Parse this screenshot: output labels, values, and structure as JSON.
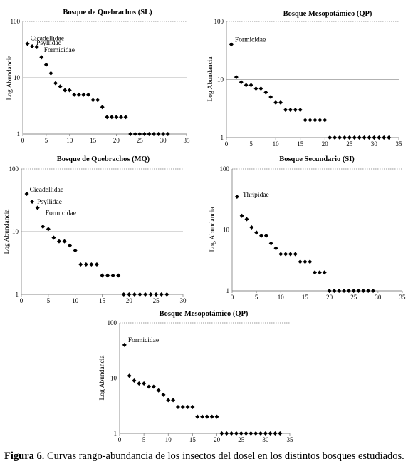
{
  "caption": {
    "label": "Figura 6.",
    "text": " Curvas rango-abundancia de los insectos del dosel en los distintos bosques estudiados."
  },
  "chart_data": [
    {
      "type": "scatter",
      "title": "Bosque de Quebrachos (SL)",
      "ylabel": "Log Abundancia",
      "yscale": "log",
      "ylim": [
        1,
        100
      ],
      "yticks": [
        "1",
        "10",
        "100"
      ],
      "xlim": [
        0,
        35
      ],
      "xticks": [
        "0",
        "5",
        "10",
        "15",
        "20",
        "25",
        "30",
        "35"
      ],
      "marker": "diamond",
      "color": "#000000",
      "x": [
        1,
        2,
        3,
        4,
        5,
        6,
        7,
        8,
        9,
        10,
        11,
        12,
        13,
        14,
        15,
        16,
        17,
        18,
        19,
        20,
        21,
        22,
        23,
        24,
        25,
        26,
        27,
        28,
        29,
        30,
        31
      ],
      "y": [
        40,
        36,
        35,
        23,
        17,
        12,
        8,
        7,
        6,
        6,
        5,
        5,
        5,
        5,
        4,
        4,
        3,
        2,
        2,
        2,
        2,
        2,
        1,
        1,
        1,
        1,
        1,
        1,
        1,
        1,
        1
      ],
      "annotations": [
        {
          "text": "Cicadellidae",
          "x": 1,
          "y": 40
        },
        {
          "text": "Psyllidae",
          "x": 2,
          "y": 36
        },
        {
          "text": "Formicidae",
          "x": 3,
          "y": 35
        }
      ]
    },
    {
      "type": "scatter",
      "title": "Bosque Mesopotámico (QP)",
      "ylabel": "Log Abundancia",
      "yscale": "log",
      "ylim": [
        1,
        100
      ],
      "yticks": [
        "1",
        "10",
        "100"
      ],
      "xlim": [
        0,
        35
      ],
      "xticks": [
        "0",
        "5",
        "10",
        "15",
        "20",
        "25",
        "30",
        "35"
      ],
      "marker": "diamond",
      "color": "#000000",
      "x": [
        1,
        2,
        3,
        4,
        5,
        6,
        7,
        8,
        9,
        10,
        11,
        12,
        13,
        14,
        15,
        16,
        17,
        18,
        19,
        20,
        21,
        22,
        23,
        24,
        25,
        26,
        27,
        28,
        29,
        30,
        31,
        32,
        33
      ],
      "y": [
        40,
        11,
        9,
        8,
        8,
        7,
        7,
        6,
        5,
        4,
        4,
        3,
        3,
        3,
        3,
        2,
        2,
        2,
        2,
        2,
        1,
        1,
        1,
        1,
        1,
        1,
        1,
        1,
        1,
        1,
        1,
        1,
        1
      ],
      "annotations": [
        {
          "text": "Formicidae",
          "x": 1,
          "y": 40
        }
      ]
    },
    {
      "type": "scatter",
      "title": "Bosque de Quebrachos (MQ)",
      "ylabel": "Log Abundancia",
      "yscale": "log",
      "ylim": [
        1,
        100
      ],
      "yticks": [
        "1",
        "10",
        "100"
      ],
      "xlim": [
        0,
        30
      ],
      "xticks": [
        "0",
        "5",
        "10",
        "15",
        "20",
        "25",
        "30"
      ],
      "marker": "diamond",
      "color": "#000000",
      "x": [
        1,
        2,
        3,
        4,
        5,
        6,
        7,
        8,
        9,
        10,
        11,
        12,
        13,
        14,
        15,
        16,
        17,
        18,
        19,
        20,
        21,
        22,
        23,
        24,
        25,
        26,
        27
      ],
      "y": [
        40,
        30,
        24,
        12,
        11,
        8,
        7,
        7,
        6,
        5,
        3,
        3,
        3,
        3,
        2,
        2,
        2,
        2,
        1,
        1,
        1,
        1,
        1,
        1,
        1,
        1,
        1
      ],
      "annotations": [
        {
          "text": "Cicadellidae",
          "x": 1,
          "y": 40
        },
        {
          "text": "Psyllidae",
          "x": 2,
          "y": 30
        },
        {
          "text": "Formicidae",
          "x": 3,
          "y": 24
        }
      ]
    },
    {
      "type": "scatter",
      "title": "Bosque Secundario (SI)",
      "ylabel": "Log Abundancia",
      "yscale": "log",
      "ylim": [
        1,
        100
      ],
      "yticks": [
        "1",
        "10",
        "100"
      ],
      "xlim": [
        0,
        35
      ],
      "xticks": [
        "0",
        "5",
        "10",
        "15",
        "20",
        "25",
        "30",
        "35"
      ],
      "marker": "diamond",
      "color": "#000000",
      "x": [
        1,
        2,
        3,
        4,
        5,
        6,
        7,
        8,
        9,
        10,
        11,
        12,
        13,
        14,
        15,
        16,
        17,
        18,
        19,
        20,
        21,
        22,
        23,
        24,
        25,
        26,
        27,
        28,
        29
      ],
      "y": [
        35,
        17,
        15,
        11,
        9,
        8,
        8,
        6,
        5,
        4,
        4,
        4,
        4,
        3,
        3,
        3,
        2,
        2,
        2,
        1,
        1,
        1,
        1,
        1,
        1,
        1,
        1,
        1,
        1
      ],
      "annotations": [
        {
          "text": "Thripidae",
          "x": 1,
          "y": 35
        }
      ]
    },
    {
      "type": "scatter",
      "title": "Bosque Mesopotámico (QP)",
      "ylabel": "Log Abundancia",
      "yscale": "log",
      "ylim": [
        1,
        100
      ],
      "yticks": [
        "1",
        "10",
        "100"
      ],
      "xlim": [
        0,
        35
      ],
      "xticks": [
        "0",
        "5",
        "10",
        "15",
        "20",
        "25",
        "30",
        "35"
      ],
      "marker": "diamond",
      "color": "#000000",
      "x": [
        1,
        2,
        3,
        4,
        5,
        6,
        7,
        8,
        9,
        10,
        11,
        12,
        13,
        14,
        15,
        16,
        17,
        18,
        19,
        20,
        21,
        22,
        23,
        24,
        25,
        26,
        27,
        28,
        29,
        30,
        31,
        32,
        33
      ],
      "y": [
        40,
        11,
        9,
        8,
        8,
        7,
        7,
        6,
        5,
        4,
        4,
        3,
        3,
        3,
        3,
        2,
        2,
        2,
        2,
        2,
        1,
        1,
        1,
        1,
        1,
        1,
        1,
        1,
        1,
        1,
        1,
        1,
        1
      ],
      "annotations": [
        {
          "text": "Formicidae",
          "x": 1,
          "y": 40
        }
      ]
    }
  ]
}
